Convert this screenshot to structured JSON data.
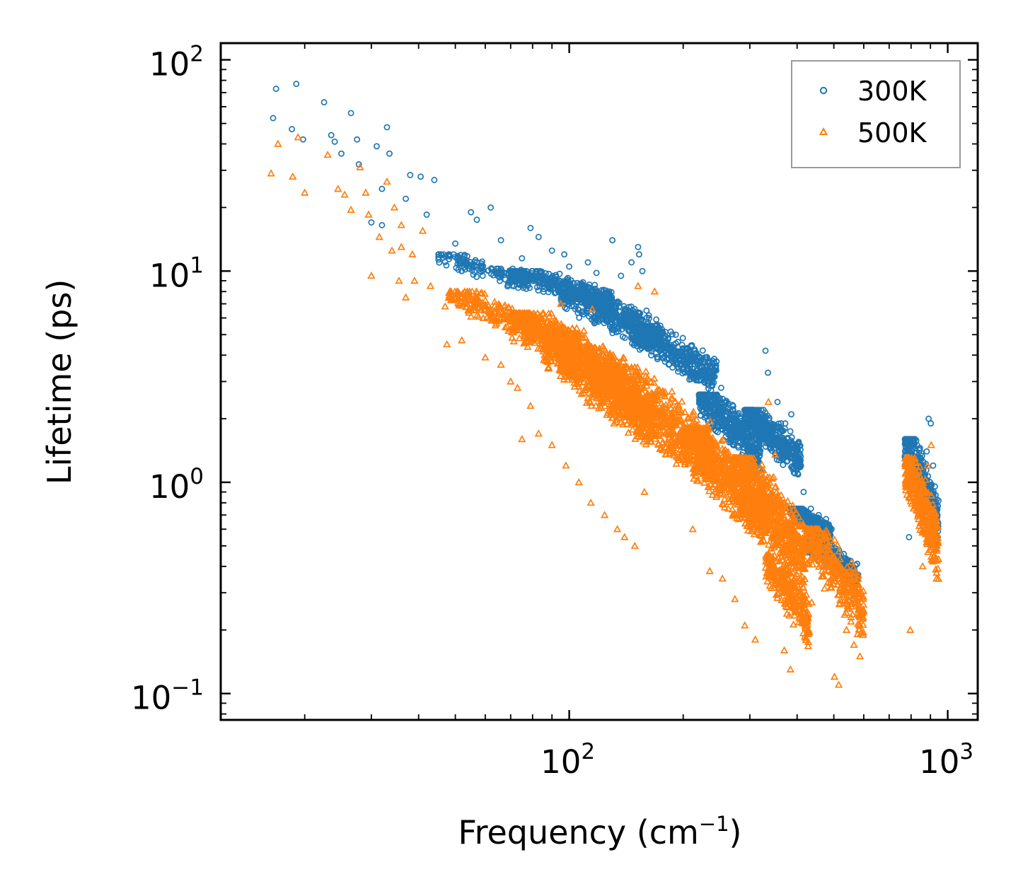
{
  "chart_data": {
    "type": "scatter",
    "title": "",
    "xlabel": "Frequency (cm",
    "xlabel_superscript": "−1",
    "xlabel_suffix": ")",
    "ylabel": "Lifetime (ps)",
    "xscale": "log",
    "yscale": "log",
    "xlim": [
      12,
      1200
    ],
    "ylim": [
      0.075,
      120
    ],
    "x_ticks": [
      {
        "value": 100,
        "base": "10",
        "exp": "2"
      },
      {
        "value": 1000,
        "base": "10",
        "exp": "3"
      }
    ],
    "y_ticks": [
      {
        "value": 0.1,
        "base": "10",
        "exp": "−1"
      },
      {
        "value": 1,
        "base": "10",
        "exp": "0"
      },
      {
        "value": 10,
        "base": "10",
        "exp": "1"
      },
      {
        "value": 100,
        "base": "10",
        "exp": "2"
      }
    ],
    "legend_position": "top-right",
    "series": [
      {
        "name": "300K",
        "marker": "circle",
        "color": "#1f77b4",
        "points": [
          [
            16.5,
            53
          ],
          [
            16.8,
            73
          ],
          [
            18.5,
            47
          ],
          [
            19,
            77
          ],
          [
            19.8,
            42
          ],
          [
            22.5,
            63
          ],
          [
            23.5,
            44
          ],
          [
            24,
            41
          ],
          [
            25,
            36
          ],
          [
            26.5,
            56
          ],
          [
            27.5,
            42
          ],
          [
            27.8,
            32
          ],
          [
            31,
            39
          ],
          [
            33,
            48
          ],
          [
            33.5,
            36
          ],
          [
            38,
            28.5
          ],
          [
            40.5,
            28
          ],
          [
            32,
            24.5
          ],
          [
            37,
            22
          ],
          [
            44,
            27
          ],
          [
            62,
            20
          ],
          [
            55,
            19
          ],
          [
            30,
            17
          ],
          [
            32,
            16.5
          ],
          [
            42,
            18.5
          ],
          [
            50,
            13.5
          ],
          [
            57,
            17.5
          ],
          [
            66,
            14
          ],
          [
            79,
            16
          ],
          [
            83,
            14.5
          ],
          [
            90,
            12.5
          ],
          [
            97,
            12
          ],
          [
            130,
            14
          ],
          [
            152,
            13
          ],
          [
            153,
            12
          ],
          [
            112,
            11
          ],
          [
            100,
            10.5
          ],
          [
            118,
            9.8
          ],
          [
            137,
            9.5
          ],
          [
            156,
            10
          ],
          [
            146,
            11
          ],
          [
            75,
            11.5
          ],
          [
            110,
            8
          ],
          [
            128,
            7
          ],
          [
            160,
            6.5
          ],
          [
            175,
            5
          ],
          [
            189,
            4.2
          ],
          [
            204,
            3.6
          ],
          [
            213,
            3.8
          ],
          [
            229,
            3.2
          ],
          [
            252,
            2.8
          ],
          [
            271,
            2.2
          ],
          [
            287,
            1.8
          ],
          [
            306,
            1.7
          ],
          [
            330,
            4.2
          ],
          [
            335,
            3.3
          ],
          [
            355,
            2.4
          ],
          [
            372,
            1.9
          ],
          [
            386,
            2.1
          ],
          [
            398,
            1.4
          ],
          [
            322,
            1.1
          ],
          [
            300,
            1.3
          ],
          [
            278,
            1.0
          ],
          [
            416,
            0.9
          ],
          [
            435,
            0.75
          ],
          [
            456,
            0.7
          ],
          [
            477,
            0.67
          ],
          [
            493,
            0.6
          ],
          [
            515,
            0.45
          ],
          [
            541,
            0.4
          ],
          [
            565,
            0.28
          ],
          [
            583,
            0.25
          ],
          [
            790,
            0.55
          ],
          [
            805,
            1.3
          ],
          [
            813,
            1.6
          ],
          [
            830,
            1.5
          ],
          [
            846,
            1.1
          ],
          [
            862,
            0.85
          ],
          [
            870,
            0.65
          ],
          [
            880,
            1.4
          ],
          [
            890,
            2.0
          ],
          [
            902,
            1.9
          ],
          [
            915,
            1.2
          ],
          [
            925,
            0.75
          ],
          [
            938,
            0.55
          ]
        ],
        "clusters": [
          {
            "x": [
              45,
              78
            ],
            "y": [
              6.8,
              12
            ],
            "count": 150
          },
          {
            "x": [
              70,
              130
            ],
            "y": [
              5.5,
              10
            ],
            "count": 400
          },
          {
            "x": [
              95,
              175
            ],
            "y": [
              3.2,
              8
            ],
            "count": 500
          },
          {
            "x": [
              145,
              245
            ],
            "y": [
              2.0,
              5.5
            ],
            "count": 450
          },
          {
            "x": [
              220,
              320
            ],
            "y": [
              0.8,
              2.6
            ],
            "count": 450
          },
          {
            "x": [
              290,
              410
            ],
            "y": [
              0.8,
              2.2
            ],
            "count": 450
          },
          {
            "x": [
              380,
              490
            ],
            "y": [
              0.45,
              0.75
            ],
            "count": 350
          },
          {
            "x": [
              420,
              580
            ],
            "y": [
              0.25,
              0.55
            ],
            "count": 250
          },
          {
            "x": [
              770,
              945
            ],
            "y": [
              0.3,
              1.6
            ],
            "count": 400
          }
        ]
      },
      {
        "name": "500K",
        "marker": "triangle",
        "color": "#ff7f0e",
        "points": [
          [
            16.3,
            29
          ],
          [
            17,
            40
          ],
          [
            18.6,
            28
          ],
          [
            19.2,
            43
          ],
          [
            20,
            23.5
          ],
          [
            23,
            35.5
          ],
          [
            24.5,
            24.5
          ],
          [
            25.5,
            23
          ],
          [
            26.5,
            19.5
          ],
          [
            28,
            31
          ],
          [
            29,
            23.5
          ],
          [
            29.5,
            18.5
          ],
          [
            33,
            26.5
          ],
          [
            34.5,
            20
          ],
          [
            36,
            16.5
          ],
          [
            38.5,
            12
          ],
          [
            41,
            15.5
          ],
          [
            31.5,
            14.5
          ],
          [
            36,
            13
          ],
          [
            34,
            12.5
          ],
          [
            30,
            9.5
          ],
          [
            35.5,
            9
          ],
          [
            39,
            9
          ],
          [
            37,
            7.5
          ],
          [
            43,
            8.5
          ],
          [
            47,
            6.8
          ],
          [
            58,
            7.2
          ],
          [
            68,
            5.9
          ],
          [
            47.5,
            4.5
          ],
          [
            52,
            4.7
          ],
          [
            60,
            3.9
          ],
          [
            66,
            3.6
          ],
          [
            70,
            3.0
          ],
          [
            73,
            2.8
          ],
          [
            79,
            2.3
          ],
          [
            83,
            1.7
          ],
          [
            75,
            1.6
          ],
          [
            90,
            1.5
          ],
          [
            98,
            1.2
          ],
          [
            106,
            1.0
          ],
          [
            114,
            0.8
          ],
          [
            124,
            0.7
          ],
          [
            134,
            0.6
          ],
          [
            140,
            0.55
          ],
          [
            149,
            0.5
          ],
          [
            158,
            0.9
          ],
          [
            152,
            8.5
          ],
          [
            115,
            6.6
          ],
          [
            168,
            8
          ],
          [
            95,
            7
          ],
          [
            212,
            0.6
          ],
          [
            235,
            0.38
          ],
          [
            254,
            0.35
          ],
          [
            274,
            0.28
          ],
          [
            291,
            0.21
          ],
          [
            310,
            0.18
          ],
          [
            336,
            2.4
          ],
          [
            350,
            1.35
          ],
          [
            370,
            0.16
          ],
          [
            384,
            0.13
          ],
          [
            410,
            0.3
          ],
          [
            437,
            0.27
          ],
          [
            470,
            0.36
          ],
          [
            502,
            0.12
          ],
          [
            515,
            0.11
          ],
          [
            540,
            0.2
          ],
          [
            565,
            0.17
          ],
          [
            586,
            0.15
          ],
          [
            796,
            0.2
          ],
          [
            808,
            0.95
          ],
          [
            829,
            1.1
          ],
          [
            858,
            0.4
          ],
          [
            885,
            1.2
          ],
          [
            904,
            1.5
          ],
          [
            934,
            0.35
          ]
        ],
        "clusters": [
          {
            "x": [
              48,
              82
            ],
            "y": [
              3.6,
              8
            ],
            "count": 200
          },
          {
            "x": [
              70,
              140
            ],
            "y": [
              1.6,
              6.3
            ],
            "count": 800
          },
          {
            "x": [
              85,
              165
            ],
            "y": [
              0.9,
              5
            ],
            "count": 700
          },
          {
            "x": [
              120,
              240
            ],
            "y": [
              0.55,
              3.5
            ],
            "count": 800
          },
          {
            "x": [
              200,
              330
            ],
            "y": [
              0.3,
              1.8
            ],
            "count": 700
          },
          {
            "x": [
              270,
              420
            ],
            "y": [
              0.18,
              1.3
            ],
            "count": 700
          },
          {
            "x": [
              330,
              430
            ],
            "y": [
              0.12,
              0.45
            ],
            "count": 300
          },
          {
            "x": [
              420,
              600
            ],
            "y": [
              0.12,
              0.6
            ],
            "count": 350
          },
          {
            "x": [
              770,
              945
            ],
            "y": [
              0.22,
              1.3
            ],
            "count": 400
          }
        ]
      }
    ]
  }
}
